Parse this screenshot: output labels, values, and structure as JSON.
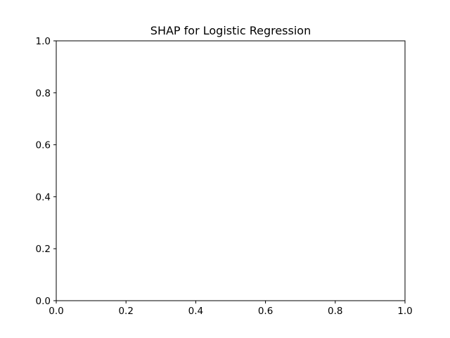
{
  "chart_data": {
    "type": "scatter",
    "title": "SHAP for Logistic Regression",
    "xlabel": "",
    "ylabel": "",
    "xlim": [
      0.0,
      1.0
    ],
    "ylim": [
      0.0,
      1.0
    ],
    "x_ticks": [
      {
        "value": 0.0,
        "label": "0.0"
      },
      {
        "value": 0.2,
        "label": "0.2"
      },
      {
        "value": 0.4,
        "label": "0.4"
      },
      {
        "value": 0.6,
        "label": "0.6"
      },
      {
        "value": 0.8,
        "label": "0.8"
      },
      {
        "value": 1.0,
        "label": "1.0"
      }
    ],
    "y_ticks": [
      {
        "value": 0.0,
        "label": "0.0"
      },
      {
        "value": 0.2,
        "label": "0.2"
      },
      {
        "value": 0.4,
        "label": "0.4"
      },
      {
        "value": 0.6,
        "label": "0.6"
      },
      {
        "value": 0.8,
        "label": "0.8"
      },
      {
        "value": 1.0,
        "label": "1.0"
      }
    ],
    "series": [],
    "grid": false,
    "legend": "none",
    "colors": {
      "background": "#ffffff",
      "axes": "#000000",
      "text": "#000000"
    }
  }
}
